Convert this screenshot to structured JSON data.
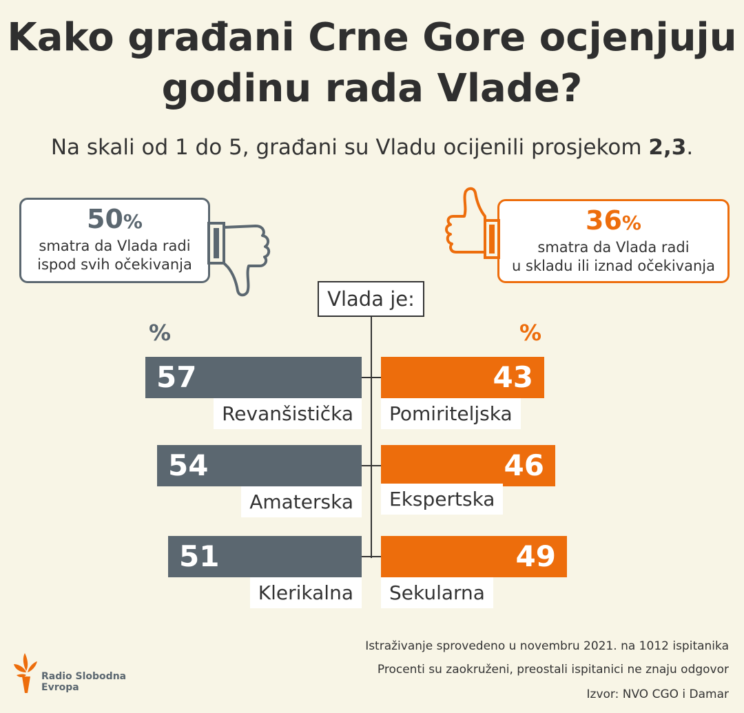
{
  "title_lines": [
    "Kako građani Crne Gore ocjenjuju",
    "godinu rada Vlade?"
  ],
  "subtitle": {
    "text": "Na skali od 1 do 5, građani su Vladu ocijenili prosjekom ",
    "value": "2,3",
    "end": "."
  },
  "callouts": {
    "left": {
      "number": "50",
      "sign": "%",
      "line1": "smatra da Vlada radi",
      "line2": "ispod svih očekivanja"
    },
    "right": {
      "number": "36",
      "sign": "%",
      "line1": "smatra da Vlada radi",
      "line2": "u skladu ili iznad očekivanja"
    }
  },
  "center_label": "Vlada je:",
  "unit_label": "%",
  "colors": {
    "left": "#5b6770",
    "right": "#ed6d0c",
    "background": "#f8f5e6"
  },
  "chart_data": {
    "type": "bar",
    "orientation": "horizontal-diverging",
    "unit": "%",
    "pairs": [
      {
        "left_label": "Revanšistička",
        "left_value": 57,
        "right_label": "Pomiriteljska",
        "right_value": 43
      },
      {
        "left_label": "Amaterska",
        "left_value": 54,
        "right_label": "Ekspertska",
        "right_value": 46
      },
      {
        "left_label": "Klerikalna",
        "left_value": 51,
        "right_label": "Sekularna",
        "right_value": 49
      }
    ]
  },
  "notes": [
    "Istraživanje sprovedeno u novembru 2021. na 1012 ispitanika",
    "Procenti su zaokruženi, preostali ispitanici ne znaju odgovor",
    "Izvor: NVO CGO i Damar"
  ],
  "logo": {
    "line1": "Radio Slobodna",
    "line2": "Evropa"
  },
  "icons": {
    "left": "thumbs-down-icon",
    "right": "thumbs-up-icon",
    "logo": "rfe-rl-logo-icon"
  }
}
